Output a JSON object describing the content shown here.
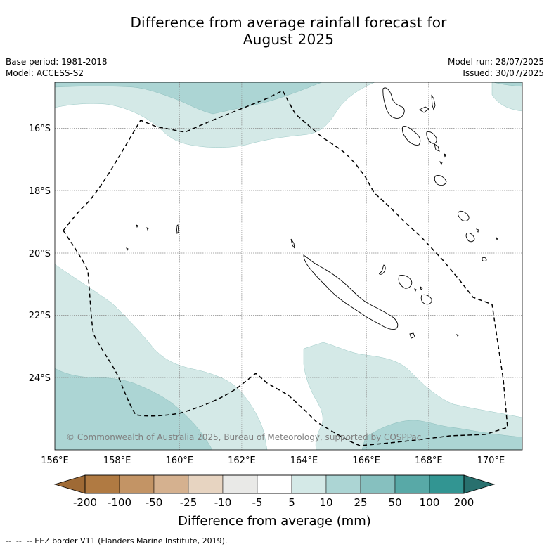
{
  "title": {
    "line1": "Difference from average rainfall forecast for",
    "line2": "August 2025"
  },
  "meta": {
    "base_period": "Base period: 1981-2018",
    "model": "Model: ACCESS-S2",
    "model_run": "Model run: 28/07/2025",
    "issued": "Issued: 30/07/2025"
  },
  "map": {
    "lon_ticks": [
      "156°E",
      "158°E",
      "160°E",
      "162°E",
      "164°E",
      "166°E",
      "168°E",
      "170°E"
    ],
    "lat_ticks": [
      "16°S",
      "18°S",
      "20°S",
      "22°S",
      "24°S"
    ],
    "lon_range": [
      156,
      171
    ],
    "lat_range": [
      -26.4,
      -14.6
    ],
    "copyright": "© Commonwealth of Australia 2025, Bureau of Meteorology, supported by COSPPac",
    "colors": {
      "cat_5_10": "#d4e9e7",
      "cat_10_25": "#acd5d4"
    }
  },
  "colorbar": {
    "labels": [
      "-200",
      "-100",
      "-50",
      "-25",
      "-10",
      "-5",
      "5",
      "10",
      "25",
      "50",
      "100",
      "200"
    ],
    "colors": [
      "#9f6a35",
      "#b07a42",
      "#c39465",
      "#d5b18f",
      "#e7d4c1",
      "#e9e9e7",
      "#ffffff",
      "#d4e9e7",
      "#acd5d4",
      "#86c0bf",
      "#58a9a7",
      "#329592",
      "#28706e"
    ],
    "title": "Difference from average (mm)"
  },
  "footer": {
    "legend_text": "-- EEZ border V11 (Flanders Marine Institute, 2019)."
  }
}
